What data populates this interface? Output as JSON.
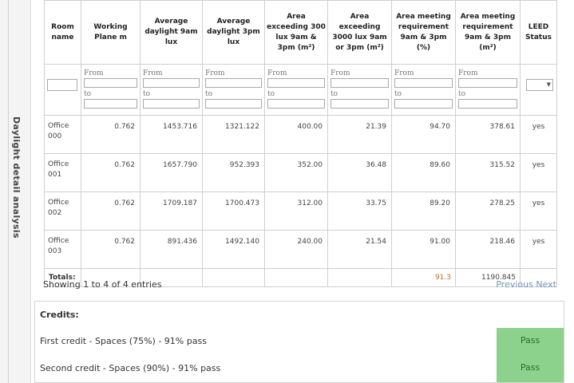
{
  "side_tab": {
    "label": "Daylight detail analysis"
  },
  "table": {
    "headers": [
      "Room name",
      "Working Plane m",
      "Average daylight 9am lux",
      "Average daylight 3pm lux",
      "Area exceeding 300 lux 9am & 3pm (m²)",
      "Area exceeding 3000 lux 9am or 3pm (m²)",
      "Area meeting requirement 9am & 3pm (%)",
      "Area meeting requirement 9am & 3pm (m²)",
      "LEED Status"
    ],
    "filter_from": "From",
    "filter_to": "to",
    "select_arrow": "▼",
    "rows": [
      {
        "name_a": "Office",
        "name_b": "000",
        "plane": "0.762",
        "avg9": "1453.716",
        "avg3": "1321.122",
        "a300": "400.00",
        "a3000": "21.39",
        "pct": "94.70",
        "area": "378.61",
        "leed": "yes"
      },
      {
        "name_a": "Office",
        "name_b": "001",
        "plane": "0.762",
        "avg9": "1657.790",
        "avg3": "952.393",
        "a300": "352.00",
        "a3000": "36.48",
        "pct": "89.60",
        "area": "315.52",
        "leed": "yes"
      },
      {
        "name_a": "Office",
        "name_b": "002",
        "plane": "0.762",
        "avg9": "1709.187",
        "avg3": "1700.473",
        "a300": "312.00",
        "a3000": "33.75",
        "pct": "89.20",
        "area": "278.25",
        "leed": "yes"
      },
      {
        "name_a": "Office",
        "name_b": "003",
        "plane": "0.762",
        "avg9": "891.436",
        "avg3": "1492.140",
        "a300": "240.00",
        "a3000": "21.54",
        "pct": "91.00",
        "area": "218.46",
        "leed": "yes"
      }
    ],
    "totals": {
      "label": "Totals:",
      "pct": "91.3",
      "area": "1190.845"
    }
  },
  "info": {
    "showing": "Showing 1 to 4 of 4 entries"
  },
  "pager": {
    "previous": "Previous",
    "next": "Next"
  },
  "credits": {
    "title": "Credits:",
    "items": [
      {
        "text": "First credit - Spaces (75%) - 91% pass",
        "status": "Pass"
      },
      {
        "text": "Second credit - Spaces (90%) - 91% pass",
        "status": "Pass"
      }
    ]
  },
  "colors": {
    "pass_bg": "#8cd18c",
    "link": "#6f93b5",
    "totals_pct": "#b5761b"
  }
}
